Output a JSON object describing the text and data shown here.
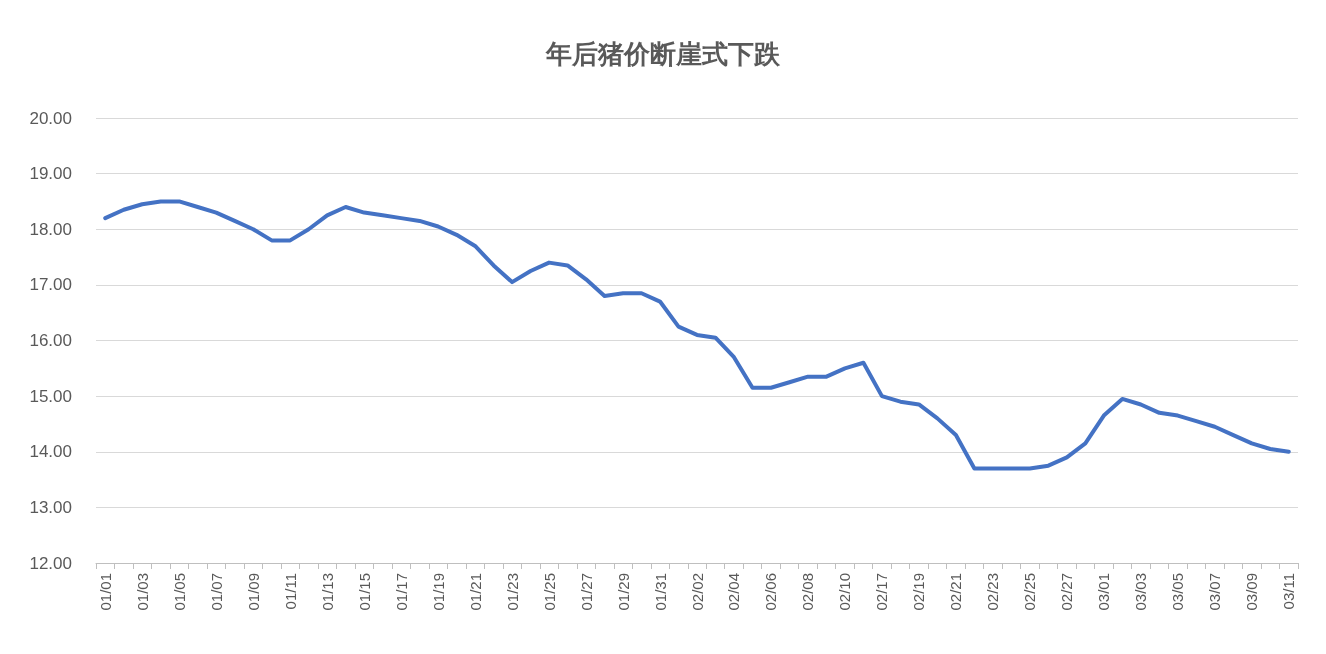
{
  "chart_data": {
    "type": "line",
    "title": "年后猪价断崖式下跌",
    "categories": [
      "01/01",
      null,
      "01/03",
      null,
      "01/05",
      null,
      "01/07",
      null,
      "01/09",
      null,
      "01/11",
      null,
      "01/13",
      null,
      "01/15",
      null,
      "01/17",
      null,
      "01/19",
      null,
      "01/21",
      null,
      "01/23",
      null,
      "01/25",
      null,
      "01/27",
      null,
      "01/29",
      null,
      "01/31",
      null,
      "02/02",
      null,
      "02/04",
      null,
      "02/06",
      null,
      "02/08",
      null,
      "02/10",
      null,
      "02/17",
      null,
      "02/19",
      null,
      "02/21",
      null,
      "02/23",
      null,
      "02/25",
      null,
      "02/27",
      null,
      "03/01",
      null,
      "03/03",
      null,
      "03/05",
      null,
      "03/07",
      null,
      "03/09",
      null,
      "03/11"
    ],
    "values": [
      18.2,
      18.35,
      18.45,
      18.5,
      18.5,
      18.4,
      18.3,
      18.15,
      18.0,
      17.8,
      17.8,
      18.0,
      18.25,
      18.4,
      18.3,
      18.25,
      18.2,
      18.15,
      18.05,
      17.9,
      17.7,
      17.35,
      17.05,
      17.25,
      17.4,
      17.35,
      17.1,
      16.8,
      16.85,
      16.85,
      16.7,
      16.25,
      16.1,
      16.05,
      15.7,
      15.15,
      15.15,
      15.25,
      15.35,
      15.35,
      15.5,
      15.6,
      15.0,
      14.9,
      14.85,
      14.6,
      14.3,
      13.7,
      13.7,
      13.7,
      13.7,
      13.75,
      13.9,
      14.15,
      14.65,
      14.95,
      14.85,
      14.7,
      14.65,
      14.55,
      14.45,
      14.3,
      14.15,
      14.05,
      14.0
    ],
    "color": "#4472c4",
    "ylim": [
      12,
      20
    ],
    "yticks": [
      {
        "value": 12,
        "label": "12.00"
      },
      {
        "value": 13,
        "label": "13.00"
      },
      {
        "value": 14,
        "label": "14.00"
      },
      {
        "value": 15,
        "label": "15.00"
      },
      {
        "value": 16,
        "label": "16.00"
      },
      {
        "value": 17,
        "label": "17.00"
      },
      {
        "value": 18,
        "label": "18.00"
      },
      {
        "value": 19,
        "label": "19.00"
      },
      {
        "value": 20,
        "label": "20.00"
      }
    ],
    "grid": "y",
    "marker": "none",
    "line_style": "solid"
  }
}
